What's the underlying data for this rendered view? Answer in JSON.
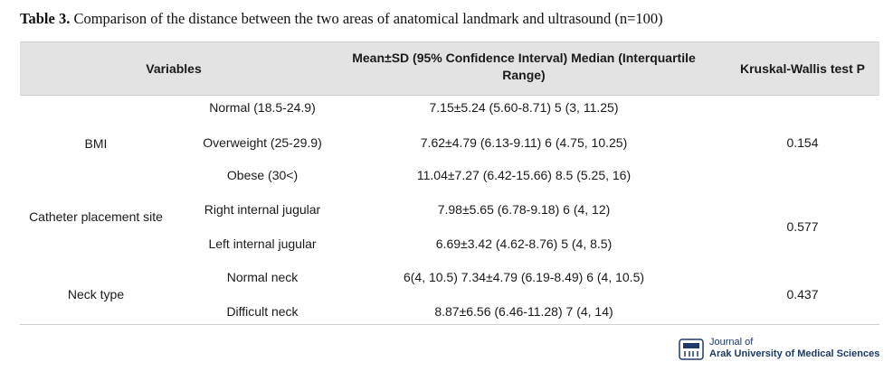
{
  "caption": {
    "label": "Table 3.",
    "text": " Comparison of the distance between the two areas of anatomical landmark and ultrasound (n=100)"
  },
  "headers": {
    "variables": "Variables",
    "mean": "Mean±SD (95% Confidence Interval) Median (Interquartile Range)",
    "kw": "Kruskal-Wallis test P"
  },
  "groups": [
    {
      "name": "BMI",
      "p": "0.154",
      "rows": [
        {
          "sub": "Normal (18.5-24.9)",
          "value": "7.15±5.24 (5.60-8.71) 5 (3, 11.25)"
        },
        {
          "sub": "Overweight (25-29.9)",
          "value": "7.62±4.79 (6.13-9.11) 6 (4.75, 10.25)"
        },
        {
          "sub": "Obese (30<)",
          "value": "11.04±7.27 (6.42-15.66) 8.5 (5.25, 16)"
        }
      ]
    },
    {
      "name": "Catheter placement site",
      "p": "0.577",
      "rows": [
        {
          "sub": "Right internal jugular",
          "value": "7.98±5.65 (6.78-9.18) 6 (4, 12)"
        },
        {
          "sub": "Left internal jugular",
          "value": "6.69±3.42 (4.62-8.76) 5 (4, 8.5)"
        }
      ]
    },
    {
      "name": "Neck type",
      "p": "0.437",
      "rows": [
        {
          "sub": "Normal neck",
          "value": "6(4, 10.5) 7.34±4.79 (6.19-8.49) 6 (4, 10.5)"
        },
        {
          "sub": "Difficult neck",
          "value": "8.87±6.56 (6.46-11.28) 7 (4, 14)"
        }
      ]
    }
  ],
  "footer": {
    "journal_line1": "Journal of",
    "journal_line2": "Arak University of Medical Sciences",
    "logo_icon": "university-seal-icon",
    "brand_color": "#1e3a66"
  }
}
